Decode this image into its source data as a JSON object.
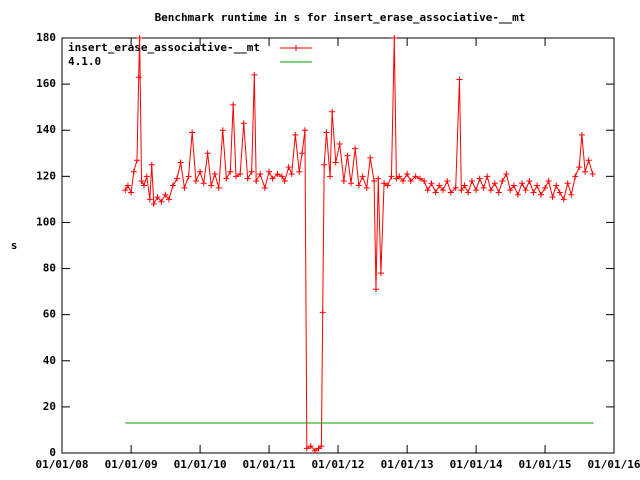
{
  "chart_data": {
    "type": "line",
    "title": "Benchmark runtime in s for insert_erase_associative-__mt",
    "y_label": "s",
    "xlim": [
      "2008-01-01",
      "2016-01-01"
    ],
    "xticks": [
      {
        "value": "2008-01-01",
        "label": "01/01/08"
      },
      {
        "value": "2009-01-01",
        "label": "01/01/09"
      },
      {
        "value": "2010-01-01",
        "label": "01/01/10"
      },
      {
        "value": "2011-01-01",
        "label": "01/01/11"
      },
      {
        "value": "2012-01-01",
        "label": "01/01/12"
      },
      {
        "value": "2013-01-01",
        "label": "01/01/13"
      },
      {
        "value": "2014-01-01",
        "label": "01/01/14"
      },
      {
        "value": "2015-01-01",
        "label": "01/01/15"
      },
      {
        "value": "2016-01-01",
        "label": "01/01/16"
      }
    ],
    "ylim": [
      0,
      180
    ],
    "yticks": [
      0,
      20,
      40,
      60,
      80,
      100,
      120,
      140,
      160,
      180
    ],
    "grid": false,
    "legend": "top-left",
    "series": [
      {
        "name": "insert_erase_associative-__mt",
        "color": "#ff0000",
        "markers": true,
        "x": [
          "2008-12-01",
          "2008-12-15",
          "2009-01-01",
          "2009-01-15",
          "2009-02-01",
          "2009-02-10",
          "2009-02-15",
          "2009-02-25",
          "2009-03-10",
          "2009-03-25",
          "2009-04-10",
          "2009-04-20",
          "2009-05-01",
          "2009-05-20",
          "2009-06-10",
          "2009-07-01",
          "2009-07-20",
          "2009-08-10",
          "2009-09-01",
          "2009-09-20",
          "2009-10-10",
          "2009-11-01",
          "2009-11-20",
          "2009-12-10",
          "2010-01-01",
          "2010-01-20",
          "2010-02-10",
          "2010-03-01",
          "2010-03-20",
          "2010-04-10",
          "2010-05-01",
          "2010-05-20",
          "2010-06-10",
          "2010-06-25",
          "2010-07-10",
          "2010-08-01",
          "2010-08-20",
          "2010-09-10",
          "2010-10-01",
          "2010-10-15",
          "2010-10-25",
          "2010-11-15",
          "2010-12-10",
          "2011-01-01",
          "2011-01-20",
          "2011-02-15",
          "2011-03-10",
          "2011-03-25",
          "2011-04-15",
          "2011-05-01",
          "2011-05-20",
          "2011-06-10",
          "2011-06-25",
          "2011-07-10",
          "2011-07-20",
          "2011-08-10",
          "2011-09-01",
          "2011-09-20",
          "2011-10-05",
          "2011-10-12",
          "2011-10-20",
          "2011-11-01",
          "2011-11-20",
          "2011-12-01",
          "2011-12-20",
          "2012-01-10",
          "2012-02-01",
          "2012-02-20",
          "2012-03-10",
          "2012-04-01",
          "2012-04-20",
          "2012-05-10",
          "2012-06-01",
          "2012-06-20",
          "2012-07-10",
          "2012-07-20",
          "2012-08-01",
          "2012-08-15",
          "2012-09-01",
          "2012-09-20",
          "2012-10-10",
          "2012-10-25",
          "2012-11-05",
          "2012-11-20",
          "2012-12-10",
          "2013-01-01",
          "2013-01-20",
          "2013-02-15",
          "2013-03-10",
          "2013-04-01",
          "2013-04-20",
          "2013-05-10",
          "2013-06-01",
          "2013-06-20",
          "2013-07-10",
          "2013-08-01",
          "2013-08-20",
          "2013-09-15",
          "2013-10-05",
          "2013-10-15",
          "2013-11-01",
          "2013-11-20",
          "2013-12-10",
          "2014-01-01",
          "2014-01-20",
          "2014-02-10",
          "2014-03-01",
          "2014-03-20",
          "2014-04-10",
          "2014-05-01",
          "2014-05-20",
          "2014-06-10",
          "2014-07-01",
          "2014-07-20",
          "2014-08-10",
          "2014-09-01",
          "2014-09-20",
          "2014-10-10",
          "2014-11-01",
          "2014-11-20",
          "2014-12-10",
          "2015-01-01",
          "2015-01-20",
          "2015-02-10",
          "2015-03-01",
          "2015-03-20",
          "2015-04-10",
          "2015-05-01",
          "2015-05-20",
          "2015-06-10",
          "2015-07-01",
          "2015-07-15",
          "2015-08-01",
          "2015-08-20",
          "2015-09-10"
        ],
        "values": [
          114,
          116,
          113,
          122,
          127,
          163,
          180,
          118,
          116,
          120,
          110,
          125,
          108,
          111,
          109,
          112,
          110,
          116,
          119,
          126,
          115,
          120,
          139,
          118,
          122,
          117,
          130,
          116,
          121,
          115,
          140,
          119,
          122,
          151,
          120,
          121,
          143,
          119,
          122,
          164,
          118,
          121,
          115,
          122,
          119,
          121,
          120,
          118,
          124,
          121,
          138,
          122,
          130,
          140,
          2,
          3,
          1,
          2,
          3,
          61,
          125,
          139,
          120,
          148,
          126,
          134,
          118,
          129,
          117,
          132,
          116,
          120,
          115,
          128,
          118,
          71,
          119,
          78,
          117,
          116,
          120,
          180,
          119,
          120,
          118,
          121,
          118,
          120,
          119,
          118,
          114,
          117,
          113,
          116,
          114,
          118,
          113,
          115,
          162,
          114,
          116,
          113,
          118,
          114,
          119,
          115,
          120,
          114,
          117,
          113,
          118,
          121,
          114,
          116,
          112,
          117,
          114,
          118,
          113,
          116,
          112,
          115,
          118,
          111,
          116,
          113,
          110,
          117,
          112,
          120,
          124,
          138,
          122,
          127,
          121
        ]
      },
      {
        "name": "4.1.0",
        "color": "#00a000",
        "markers": false,
        "x": [
          "2008-12-01",
          "2015-09-15"
        ],
        "values": [
          13,
          13
        ]
      }
    ]
  }
}
